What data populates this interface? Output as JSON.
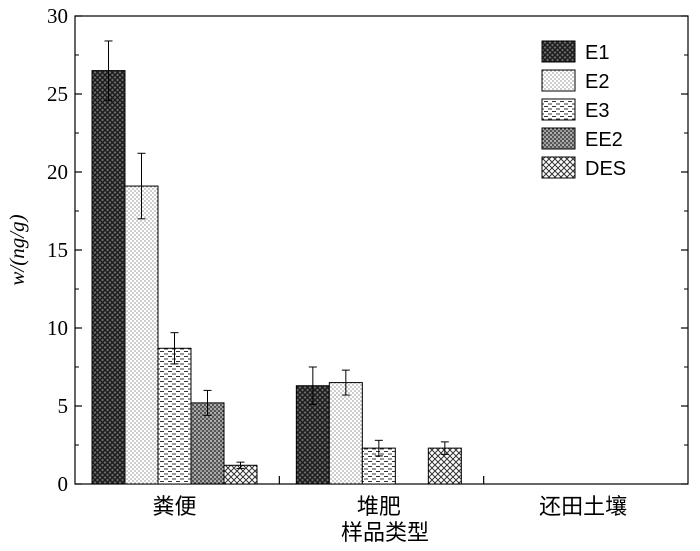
{
  "chart_data": {
    "type": "bar",
    "xlabel": "样品类型",
    "ylabel": "w/(ng/g)",
    "ylim": [
      0,
      30
    ],
    "yticks": [
      "0",
      "5",
      "10",
      "15",
      "20",
      "25",
      "30"
    ],
    "categories": [
      "粪便",
      "堆肥",
      "还田土壤"
    ],
    "legend_position": "top-right",
    "grid": false,
    "series": [
      {
        "name": "E1",
        "pattern": "dark-crosshatch",
        "values": [
          26.5,
          6.3,
          null
        ],
        "errors": [
          1.9,
          1.2,
          null
        ]
      },
      {
        "name": "E2",
        "pattern": "fine-dots",
        "values": [
          19.1,
          6.5,
          null
        ],
        "errors": [
          2.1,
          0.8,
          null
        ]
      },
      {
        "name": "E3",
        "pattern": "dashes",
        "values": [
          8.7,
          2.3,
          null
        ],
        "errors": [
          1.0,
          0.5,
          null
        ]
      },
      {
        "name": "EE2",
        "pattern": "dense-dots",
        "values": [
          5.2,
          null,
          null
        ],
        "errors": [
          0.8,
          null,
          null
        ]
      },
      {
        "name": "DES",
        "pattern": "diagonal-cross",
        "values": [
          1.2,
          2.3,
          null
        ],
        "errors": [
          0.2,
          0.4,
          null
        ]
      }
    ]
  }
}
